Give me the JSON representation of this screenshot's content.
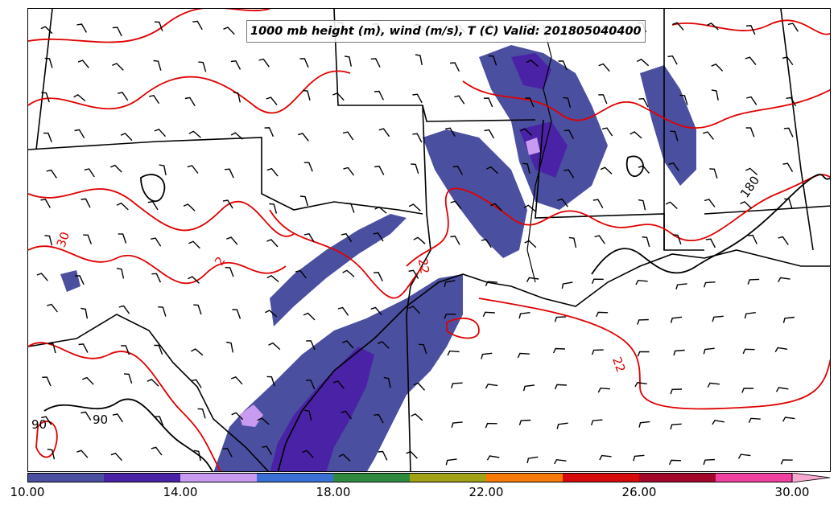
{
  "title": "1000 mb height (m), wind (m/s), T (C) Valid: 201805040400",
  "contour_labels": {
    "temp_30": "30",
    "temp_22_coast": "22",
    "temp_22_gulf": "22",
    "temp_2": "2",
    "height_180": "180",
    "height_90_a": "90",
    "height_90_b": "90"
  },
  "colorbar": {
    "min": 10,
    "max": 30,
    "extend": "max",
    "segments": [
      {
        "from": 10,
        "to": 12,
        "color": "#4b4fa0"
      },
      {
        "from": 12,
        "to": 14,
        "color": "#4a22a6"
      },
      {
        "from": 14,
        "to": 16,
        "color": "#c89af0"
      },
      {
        "from": 16,
        "to": 18,
        "color": "#3a6fd6"
      },
      {
        "from": 18,
        "to": 20,
        "color": "#2f8a3f"
      },
      {
        "from": 20,
        "to": 22,
        "color": "#a0a214"
      },
      {
        "from": 22,
        "to": 24,
        "color": "#f77a05"
      },
      {
        "from": 24,
        "to": 26,
        "color": "#d60a0a"
      },
      {
        "from": 26,
        "to": 28,
        "color": "#a3082b"
      },
      {
        "from": 28,
        "to": 30,
        "color": "#f040a0"
      }
    ],
    "extend_color": "#f7a8d0",
    "ticks": [
      {
        "value": 10,
        "label": "10.00"
      },
      {
        "value": 14,
        "label": "14.00"
      },
      {
        "value": 18,
        "label": "18.00"
      },
      {
        "value": 22,
        "label": "22.00"
      },
      {
        "value": 26,
        "label": "26.00"
      },
      {
        "value": 30,
        "label": "30.00"
      }
    ]
  },
  "colors": {
    "temperature_contour": "#e00000",
    "height_contour": "#000000",
    "boundaries": "#000000",
    "wind_barbs": "#000000"
  }
}
